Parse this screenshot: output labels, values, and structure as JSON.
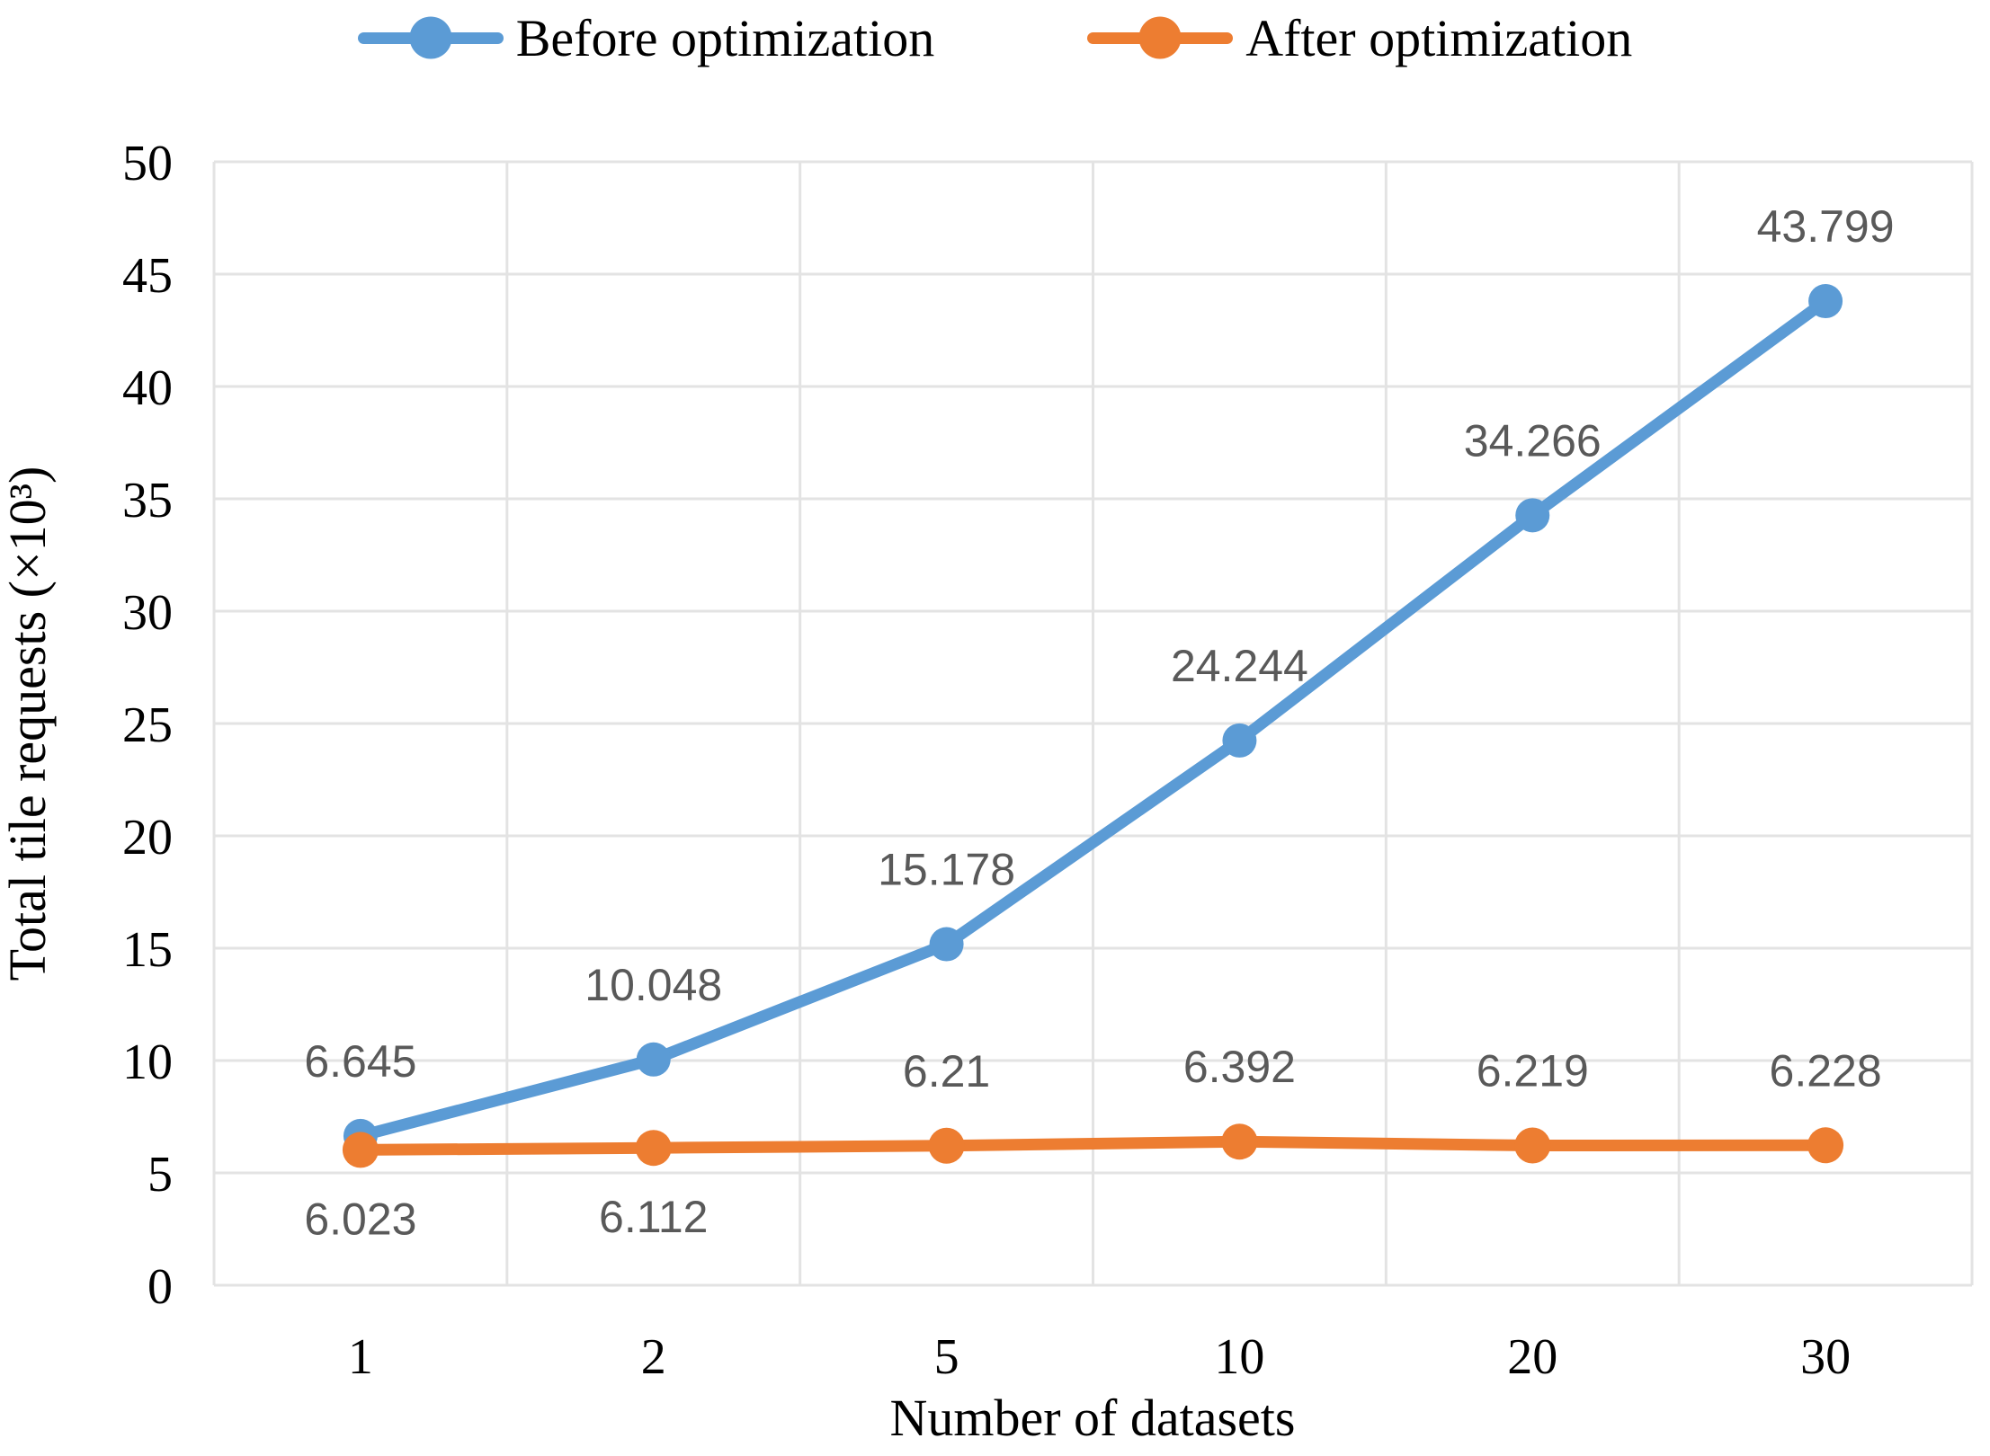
{
  "chart_data": {
    "type": "line",
    "title": "",
    "categories": [
      "1",
      "2",
      "5",
      "10",
      "20",
      "30"
    ],
    "series": [
      {
        "name": "Before optimization",
        "color": "#5B9BD5",
        "marker_radius": 19,
        "values": [
          6.645,
          10.048,
          15.178,
          24.244,
          34.266,
          43.799
        ],
        "data_labels": [
          "6.645",
          "10.048",
          "15.178",
          "24.244",
          "34.266",
          "43.799"
        ],
        "label_placement": [
          "above",
          "above",
          "above",
          "above",
          "above",
          "above"
        ]
      },
      {
        "name": "After optimization",
        "color": "#ED7D31",
        "marker_radius": 20,
        "values": [
          6.023,
          6.112,
          6.21,
          6.392,
          6.219,
          6.228
        ],
        "data_labels": [
          "6.023",
          "6.112",
          "6.21",
          "6.392",
          "6.219",
          "6.228"
        ],
        "label_placement": [
          "below",
          "below",
          "above",
          "above",
          "above",
          "above"
        ]
      }
    ],
    "xlabel": "Number of datasets",
    "ylabel": "Total tile requests (×10³)",
    "ylim": [
      0,
      50
    ],
    "yticks": [
      "0",
      "5",
      "10",
      "15",
      "20",
      "25",
      "30",
      "35",
      "40",
      "45",
      "50"
    ],
    "grid": true,
    "legend_position": "top",
    "colors": {
      "grid": "#E3E3E3",
      "data_label": "#595959",
      "axis_text": "#000000",
      "background": "#FFFFFF"
    }
  }
}
